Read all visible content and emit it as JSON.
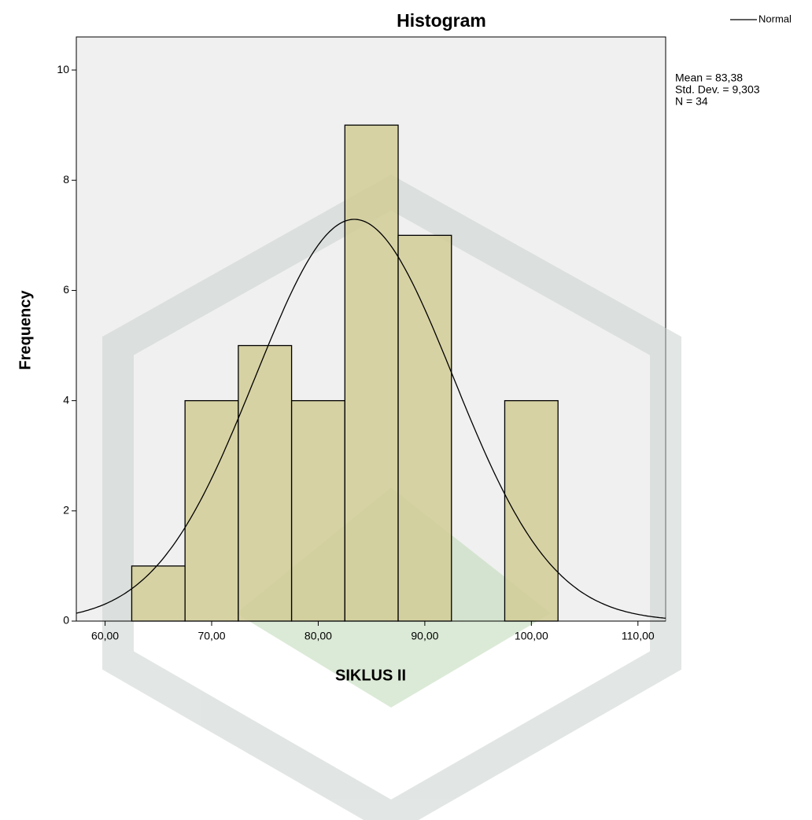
{
  "chart_data": {
    "type": "histogram",
    "title": "Histogram",
    "x_label": "SIKLUS II",
    "y_label": "Frequency",
    "bins": [
      62.5,
      67.5,
      72.5,
      77.5,
      82.5,
      87.5,
      92.5,
      97.5,
      102.5
    ],
    "counts": [
      1,
      4,
      5,
      4,
      9,
      7,
      0,
      4
    ],
    "color": "#d2cd97",
    "xlim": [
      57.3,
      112.6
    ],
    "ylim": [
      0,
      10.6
    ],
    "xticks": [
      {
        "value": 60,
        "label": "60,00"
      },
      {
        "value": 70,
        "label": "70,00"
      },
      {
        "value": 80,
        "label": "80,00"
      },
      {
        "value": 90,
        "label": "90,00"
      },
      {
        "value": 100,
        "label": "100,00"
      },
      {
        "value": 110,
        "label": "110,00"
      }
    ],
    "yticks": [
      0,
      2,
      4,
      6,
      8,
      10
    ],
    "curve": {
      "name": "Normal",
      "color": "#000000"
    },
    "stats": [
      {
        "value": 83.38,
        "label": "Mean = 83,38"
      },
      {
        "value": 9.303,
        "label": "Std. Dev. = 9,303"
      },
      {
        "value": 34,
        "label": "N = 34"
      }
    ],
    "legend": "top-right"
  }
}
